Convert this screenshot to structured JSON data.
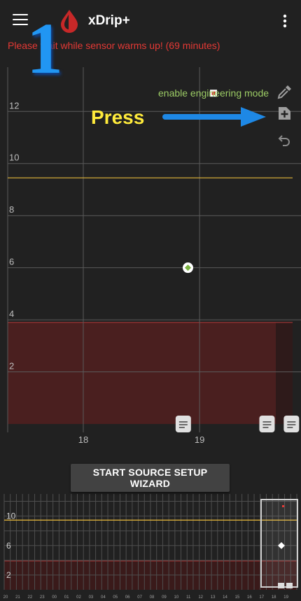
{
  "appbar": {
    "title": "xDrip+",
    "menu_icon": "hamburger-menu-icon",
    "logo_icon": "blood-drop-icon",
    "overflow_icon": "more-vert-icon"
  },
  "status": {
    "warmup_message": "Please wait while sensor warms up! (69 minutes)",
    "color": "#e53935"
  },
  "annotation": {
    "number": "1",
    "press_label": "Press",
    "arrow_color": "#1e88e5",
    "number_color": "#2196f3"
  },
  "side_actions": {
    "engineering_mode_label": "enable engineering mode",
    "eyedropper_icon": "eyedropper-icon",
    "add_note_icon": "add-note-icon",
    "undo_icon": "undo-icon"
  },
  "chart_data": [
    {
      "type": "scatter",
      "title": "",
      "y_ticks": [
        "2",
        "4",
        "6",
        "8",
        "10",
        "12"
      ],
      "x_ticks": [
        "18",
        "19"
      ],
      "ylim": [
        0,
        13.7
      ],
      "xlim": [
        17.35,
        19.8
      ],
      "high_line": 9.45,
      "low_band_top": 3.9,
      "high_line_color": "#e6b83a",
      "low_band_color": "#4a1f1f",
      "points": [
        {
          "x": 18.9,
          "y": 6.0,
          "color": "#7cb342"
        }
      ],
      "red_marker": {
        "x": 19.12,
        "y": 12.7
      },
      "note_markers": [
        18.86,
        19.58,
        19.79
      ],
      "grid": true
    },
    {
      "type": "scatter",
      "title": "",
      "y_ticks": [
        "2",
        "6",
        "10"
      ],
      "x_ticks": [
        "20",
        "21",
        "22",
        "23",
        "00",
        "01",
        "02",
        "03",
        "04",
        "05",
        "06",
        "07",
        "08",
        "09",
        "10",
        "11",
        "12",
        "13",
        "14",
        "15",
        "16",
        "17",
        "18",
        "19"
      ],
      "ylim": [
        0,
        13
      ],
      "high_line": 9.45,
      "low_band_top": 3.9,
      "selection_window": [
        "18.7",
        "19.9"
      ],
      "points": [
        {
          "x": "19",
          "y": 6.0
        }
      ]
    }
  ],
  "wizard": {
    "button_label": "START SOURCE SETUP WIZARD"
  }
}
